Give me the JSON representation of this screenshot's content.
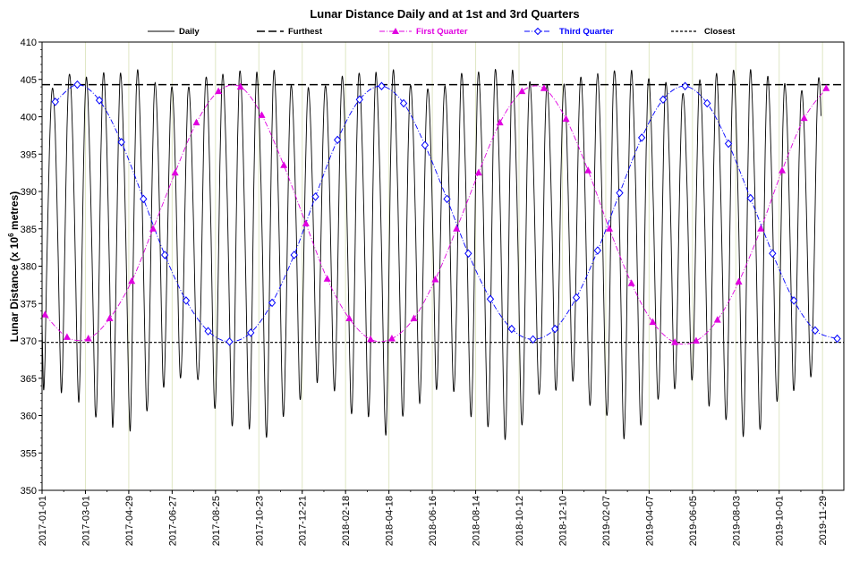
{
  "chart_data": {
    "type": "line",
    "title": "Lunar Distance Daily and at 1st and 3rd Quarters",
    "ylabel": "Lunar Distance (x 10⁶ metres)",
    "ylabel_main": "Lunar Distance (x 10",
    "ylabel_sup": "6",
    "ylabel_tail": " metres)",
    "xlabel": "",
    "ylim": [
      350,
      410
    ],
    "yticks": [
      350,
      355,
      360,
      365,
      370,
      375,
      380,
      385,
      390,
      395,
      400,
      405,
      410
    ],
    "xlim": [
      "2017-01-01",
      "2019-12-28"
    ],
    "xtick_labels": [
      "2017-01-01",
      "2017-03-01",
      "2017-04-29",
      "2017-06-27",
      "2017-08-25",
      "2017-10-23",
      "2017-12-21",
      "2018-02-18",
      "2018-04-18",
      "2018-06-16",
      "2018-08-14",
      "2018-10-12",
      "2018-12-10",
      "2019-02-07",
      "2019-04-07",
      "2019-06-05",
      "2019-08-03",
      "2019-10-01",
      "2019-11-29"
    ],
    "grid": "vertical",
    "legend_position": "top",
    "colors": {
      "daily": "#000000",
      "furthest": "#000000",
      "first_quarter": "#e000e0",
      "third_quarter": "#0000ff",
      "closest": "#000000",
      "gridline": "#dfe6c4"
    },
    "series": [
      {
        "name": "Daily",
        "style": "solid",
        "sampled_every_days": 2,
        "x_start": "2017-01-01",
        "x_step_days": 2,
        "values": [
          372.5,
          363.6,
          367.5,
          378.0,
          387.2,
          395.3,
          401.3,
          403.8,
          402.5,
          397.8,
          390.3,
          380.8,
          370.5,
          363.2,
          366.5,
          376.8,
          388.4,
          398.5,
          404.6,
          405.5,
          402.3,
          396.1,
          387.5,
          377.1,
          366.5,
          361.8,
          367.4,
          378.8,
          391.0,
          400.7,
          405.2,
          403.5,
          397.7,
          390.4,
          381.7,
          371.2,
          361.4,
          360.5,
          368.5,
          381.4,
          394.7,
          403.3,
          405.9,
          402.8,
          396.5,
          388.0,
          377.8,
          366.4,
          358.5,
          362.9,
          373.9,
          386.5,
          398.0,
          405.2,
          404.9,
          399.6,
          392.6,
          383.8,
          373.2,
          362.6,
          358.0,
          366.1,
          379.8,
          392.9,
          402.7,
          406.3,
          403.5,
          397.4,
          389.6,
          380.1,
          369.5,
          361.3,
          362.1,
          370.3,
          381.5,
          393.0,
          401.6,
          404.6,
          401.5,
          395.3,
          386.6,
          376.3,
          366.3,
          364.0,
          370.4,
          380.2,
          390.1,
          398.8,
          403.7,
          403.0,
          398.3,
          390.9,
          381.3,
          370.7,
          365.2,
          367.2,
          374.7,
          385.3,
          395.5,
          402.4,
          403.9,
          400.7,
          394.3,
          386.1,
          376.7,
          367.9,
          364.8,
          367.6,
          374.8,
          385.9,
          397.2,
          404.0,
          405.1,
          401.1,
          393.7,
          384.0,
          372.6,
          362.6,
          361.6,
          369.1,
          380.5,
          393.3,
          402.6,
          405.7,
          402.9,
          396.8,
          388.9,
          379.3,
          368.4,
          359.4,
          360.3,
          370.2,
          384.3,
          396.9,
          404.7,
          405.9,
          401.7,
          394.0,
          384.6,
          374.2,
          363.7,
          358.2,
          363.2,
          375.8,
          389.8,
          400.8,
          405.9,
          403.6,
          398.2,
          391.0,
          381.5,
          369.8,
          359.4,
          357.6,
          366.5,
          381.0,
          394.3,
          403.4,
          406.2,
          402.3,
          395.5,
          387.4,
          377.3,
          366.3,
          360.0,
          362.8,
          372.4,
          384.8,
          396.4,
          403.3,
          403.7,
          399.5,
          393.0,
          384.4,
          373.8,
          364.1,
          362.6,
          370.1,
          380.7,
          391.0,
          399.6,
          403.8,
          402.4,
          397.4,
          390.4,
          381.4,
          371.2,
          364.6,
          367.0,
          375.7,
          386.2,
          396.0,
          402.5,
          404.1,
          401.3,
          395.4,
          387.0,
          376.6,
          367.0,
          363.3,
          367.9,
          377.4,
          389.4,
          400.1,
          405.2,
          404.0,
          398.6,
          391.1,
          381.6,
          370.8,
          361.8,
          361.0,
          369.7,
          383.0,
          395.8,
          404.1,
          405.7,
          401.7,
          394.9,
          386.8,
          376.8,
          366.1,
          359.9,
          363.6,
          375.2,
          389.0,
          400.3,
          405.8,
          404.0,
          398.3,
          391.0,
          382.0,
          371.0,
          360.9,
          357.5,
          364.6,
          378.6,
          393.0,
          402.9,
          406.3,
          403.5,
          397.5,
          389.8,
          380.0,
          369.0,
          360.8,
          361.2,
          370.3,
          383.0,
          395.1,
          402.7,
          404.1,
          400.8,
          394.6,
          386.6,
          376.4,
          366.1,
          361.6,
          366.4,
          376.8,
          388.4,
          398.0,
          403.2,
          403.1,
          399.0,
          392.4,
          383.4,
          372.6,
          364.2,
          364.9,
          372.9,
          383.0,
          393.0,
          400.7,
          404.1,
          402.3,
          396.9,
          389.4,
          379.4,
          368.8,
          363.3,
          366.0,
          374.4,
          385.9,
          397.6,
          405.0,
          405.1,
          400.3,
          393.4,
          384.6,
          373.7,
          363.3,
          359.9,
          365.7,
          377.7,
          391.8,
          402.6,
          406.0,
          402.9,
          396.9,
          389.2,
          379.3,
          367.8,
          359.3,
          360.1,
          370.2,
          384.8,
          398.2,
          405.5,
          405.7,
          400.9,
          394.0,
          385.2,
          373.9,
          362.4,
          356.8,
          361.3,
          374.3,
          389.5,
          401.2,
          406.2,
          403.6,
          397.9,
          390.4,
          380.5,
          368.8,
          359.9,
          359.7,
          367.7,
          380.6,
          393.6,
          402.3,
          404.7,
          401.6,
          395.7,
          388.0,
          378.0,
          368.2,
          363.0,
          364.9,
          372.8,
          384.3,
          396.3,
          403.1,
          403.9,
          399.8,
          393.1,
          384.5,
          374.1,
          364.9,
          363.9,
          370.2,
          380.4,
          391.8,
          400.6,
          404.3,
          402.7,
          397.3,
          389.6,
          379.8,
          370.0,
          364.7,
          367.2,
          376.0,
          387.5,
          398.3,
          404.4,
          404.9,
          400.6,
          393.5,
          384.3,
          373.5,
          364.1,
          361.5,
          367.6,
          379.7,
          393.0,
          402.7,
          405.8,
          402.8,
          396.5,
          388.1,
          377.7,
          367.0,
          360.4,
          362.0,
          372.0,
          386.3,
          398.9,
          405.5,
          405.4,
          400.8,
          393.6,
          384.3,
          373.1,
          361.7,
          356.9,
          362.9,
          376.7,
          391.6,
          402.2,
          406.2,
          403.6,
          397.5,
          389.5,
          379.2,
          367.7,
          359.5,
          360.2,
          369.6,
          382.8,
          395.6,
          403.4,
          405.0,
          401.5,
          395.3,
          387.3,
          377.5,
          367.6,
          362.3,
          364.8,
          373.9,
          385.8,
          397.3,
          403.9,
          403.9,
          399.3,
          392.5,
          383.6,
          373.2,
          364.6,
          364.5,
          371.7,
          382.3,
          392.9,
          400.4,
          403.1,
          401.4,
          396.4,
          389.2,
          380.0,
          370.5,
          364.9,
          367.2,
          376.1,
          387.4,
          397.8,
          404.2,
          404.4,
          400.0,
          393.2,
          384.7,
          374.3,
          364.3,
          361.4,
          367.9,
          380.1,
          393.5,
          403.1,
          405.8,
          402.4,
          395.9,
          387.8,
          378.0,
          367.5,
          360.0,
          361.3,
          371.3,
          385.2,
          398.0,
          405.4,
          405.6,
          401.0,
          393.9,
          385.0,
          374.2,
          362.9,
          357.2,
          362.0,
          375.2,
          390.3,
          402.0,
          406.3,
          403.4,
          397.2,
          389.7,
          380.0,
          368.6,
          359.4,
          359.2,
          368.3,
          382.4,
          395.4,
          403.6,
          405.3,
          401.4,
          394.9,
          387.0,
          376.8,
          366.4,
          361.9,
          365.4,
          375.2,
          387.5,
          398.4,
          404.1,
          403.3,
          398.6,
          391.9,
          383.1,
          372.7,
          364.2,
          364.5,
          372.0,
          382.8,
          393.9,
          401.5,
          403.5,
          400.9,
          395.5,
          387.9,
          378.6,
          369.6,
          365.2,
          368.3,
          377.0,
          388.2,
          398.8,
          404.6,
          404.6,
          400.1
        ]
      },
      {
        "name": "Furthest",
        "style": "long-dash",
        "values": [
          404.3
        ]
      },
      {
        "name": "First Quarter",
        "style": "dash-dot",
        "marker": "filled-triangle",
        "x": [
          "2017-01-05",
          "2017-02-04",
          "2017-03-05",
          "2017-04-03",
          "2017-05-03",
          "2017-06-01",
          "2017-07-01",
          "2017-07-30",
          "2017-08-29",
          "2017-09-28",
          "2017-10-27",
          "2017-11-26",
          "2017-12-26",
          "2018-01-24",
          "2018-02-23",
          "2018-03-24",
          "2018-04-22",
          "2018-05-22",
          "2018-06-20",
          "2018-07-19",
          "2018-08-18",
          "2018-09-16",
          "2018-10-16",
          "2018-11-15",
          "2018-12-15",
          "2019-01-14",
          "2019-02-12",
          "2019-03-14",
          "2019-04-12",
          "2019-05-12",
          "2019-06-10",
          "2019-07-09",
          "2019-08-07",
          "2019-09-06",
          "2019-10-05",
          "2019-11-04",
          "2019-12-04"
        ],
        "values": [
          373.5,
          370.5,
          370.3,
          373.0,
          378.0,
          385.0,
          392.5,
          399.2,
          403.4,
          404.0,
          400.2,
          393.5,
          385.7,
          378.3,
          373.0,
          370.2,
          370.3,
          373.0,
          378.2,
          385.0,
          392.5,
          399.2,
          403.4,
          403.8,
          399.7,
          392.8,
          385.0,
          377.7,
          372.5,
          369.8,
          370.0,
          372.8,
          377.9,
          385.0,
          392.8,
          399.8,
          403.8
        ]
      },
      {
        "name": "Third Quarter",
        "style": "dash-dot",
        "marker": "open-diamond",
        "x": [
          "2017-01-19",
          "2017-02-18",
          "2017-03-20",
          "2017-04-19",
          "2017-05-19",
          "2017-06-17",
          "2017-07-16",
          "2017-08-15",
          "2017-09-13",
          "2017-10-12",
          "2017-11-10",
          "2017-12-10",
          "2018-01-08",
          "2018-02-07",
          "2018-03-09",
          "2018-04-08",
          "2018-05-08",
          "2018-06-06",
          "2018-07-06",
          "2018-08-04",
          "2018-09-03",
          "2018-10-02",
          "2018-10-31",
          "2018-11-30",
          "2018-12-29",
          "2019-01-27",
          "2019-02-26",
          "2019-03-28",
          "2019-04-26",
          "2019-05-26",
          "2019-06-25",
          "2019-07-24",
          "2019-08-23",
          "2019-09-22",
          "2019-10-21",
          "2019-11-19",
          "2019-12-19"
        ],
        "values": [
          402.0,
          404.3,
          402.2,
          396.6,
          389.0,
          381.5,
          375.4,
          371.3,
          369.9,
          371.1,
          375.1,
          381.5,
          389.3,
          396.9,
          402.3,
          404.1,
          401.8,
          396.2,
          389.0,
          381.7,
          375.6,
          371.6,
          370.2,
          371.6,
          375.8,
          382.1,
          389.8,
          397.2,
          402.3,
          404.1,
          401.8,
          396.4,
          389.1,
          381.7,
          375.4,
          371.4,
          370.3
        ]
      },
      {
        "name": "Closest",
        "style": "short-dash",
        "values": [
          369.8
        ]
      }
    ]
  }
}
